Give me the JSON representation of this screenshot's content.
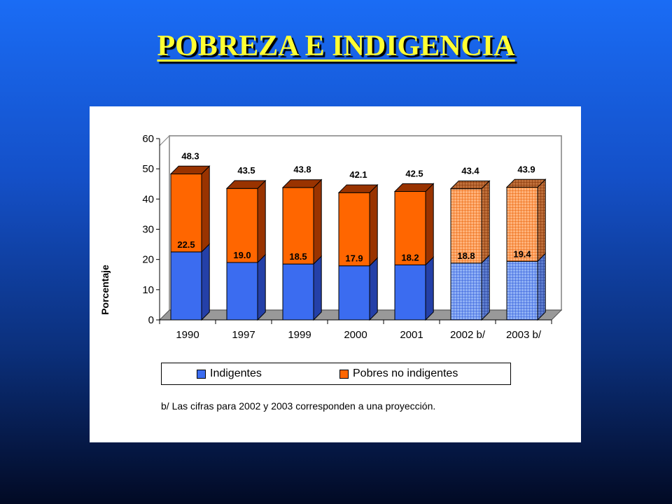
{
  "slide": {
    "title": "POBREZA E INDIGENCIA"
  },
  "colors": {
    "indigentes": "#3b6cf0",
    "indigentes_side": "#2440a8",
    "pobres": "#ff6600",
    "pobres_side": "#993300",
    "projected_indigentes": "#8fb0f5",
    "projected_pobres": "#ffb27a"
  },
  "chart_data": {
    "type": "bar",
    "stacked": true,
    "three_d": true,
    "categories": [
      "1990",
      "1997",
      "1999",
      "2000",
      "2001",
      "2002 b/",
      "2003 b/"
    ],
    "series": [
      {
        "name": "Indigentes",
        "values": [
          22.5,
          19.0,
          18.5,
          17.9,
          18.2,
          18.8,
          19.4
        ]
      },
      {
        "name": "Pobres no indigentes",
        "values": [
          25.8,
          24.5,
          25.3,
          24.2,
          24.3,
          24.6,
          24.5
        ]
      }
    ],
    "data_labels": {
      "indigentes": [
        "22.5",
        "19.0",
        "18.5",
        "17.9",
        "18.2",
        "18.8",
        "19.4"
      ],
      "totals": [
        "48.3",
        "43.5",
        "43.8",
        "42.1",
        "42.5",
        "43.4",
        "43.9"
      ]
    },
    "projected_categories": [
      "2002 b/",
      "2003 b/"
    ],
    "ylabel": "Porcentaje",
    "ylim": [
      0,
      60
    ],
    "yticks": [
      "0",
      "10",
      "20",
      "30",
      "40",
      "50",
      "60"
    ],
    "legend_position": "bottom",
    "footnote": "b/ Las cifras para 2002 y 2003 corresponden a una proyección."
  }
}
